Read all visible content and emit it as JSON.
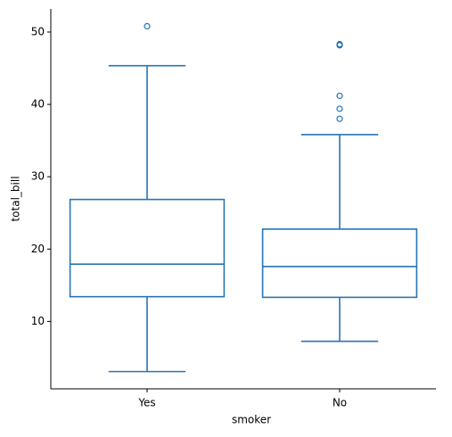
{
  "chart_data": {
    "type": "box",
    "xlabel": "smoker",
    "ylabel": "total_bill",
    "categories": [
      "Yes",
      "No"
    ],
    "boxes": [
      {
        "low": 3.07,
        "q1": 13.42,
        "median": 17.92,
        "q3": 26.86,
        "high": 45.35,
        "outliers": [
          50.81
        ]
      },
      {
        "low": 7.25,
        "q1": 13.33,
        "median": 17.59,
        "q3": 22.76,
        "high": 35.83,
        "outliers": [
          38.01,
          39.4,
          41.19,
          48.17,
          48.27,
          48.33
        ]
      }
    ],
    "color": "#2775b6",
    "ylim": [
      0.68,
      53.2
    ],
    "yticks": [
      10,
      20,
      30,
      40,
      50
    ],
    "grid": false
  }
}
